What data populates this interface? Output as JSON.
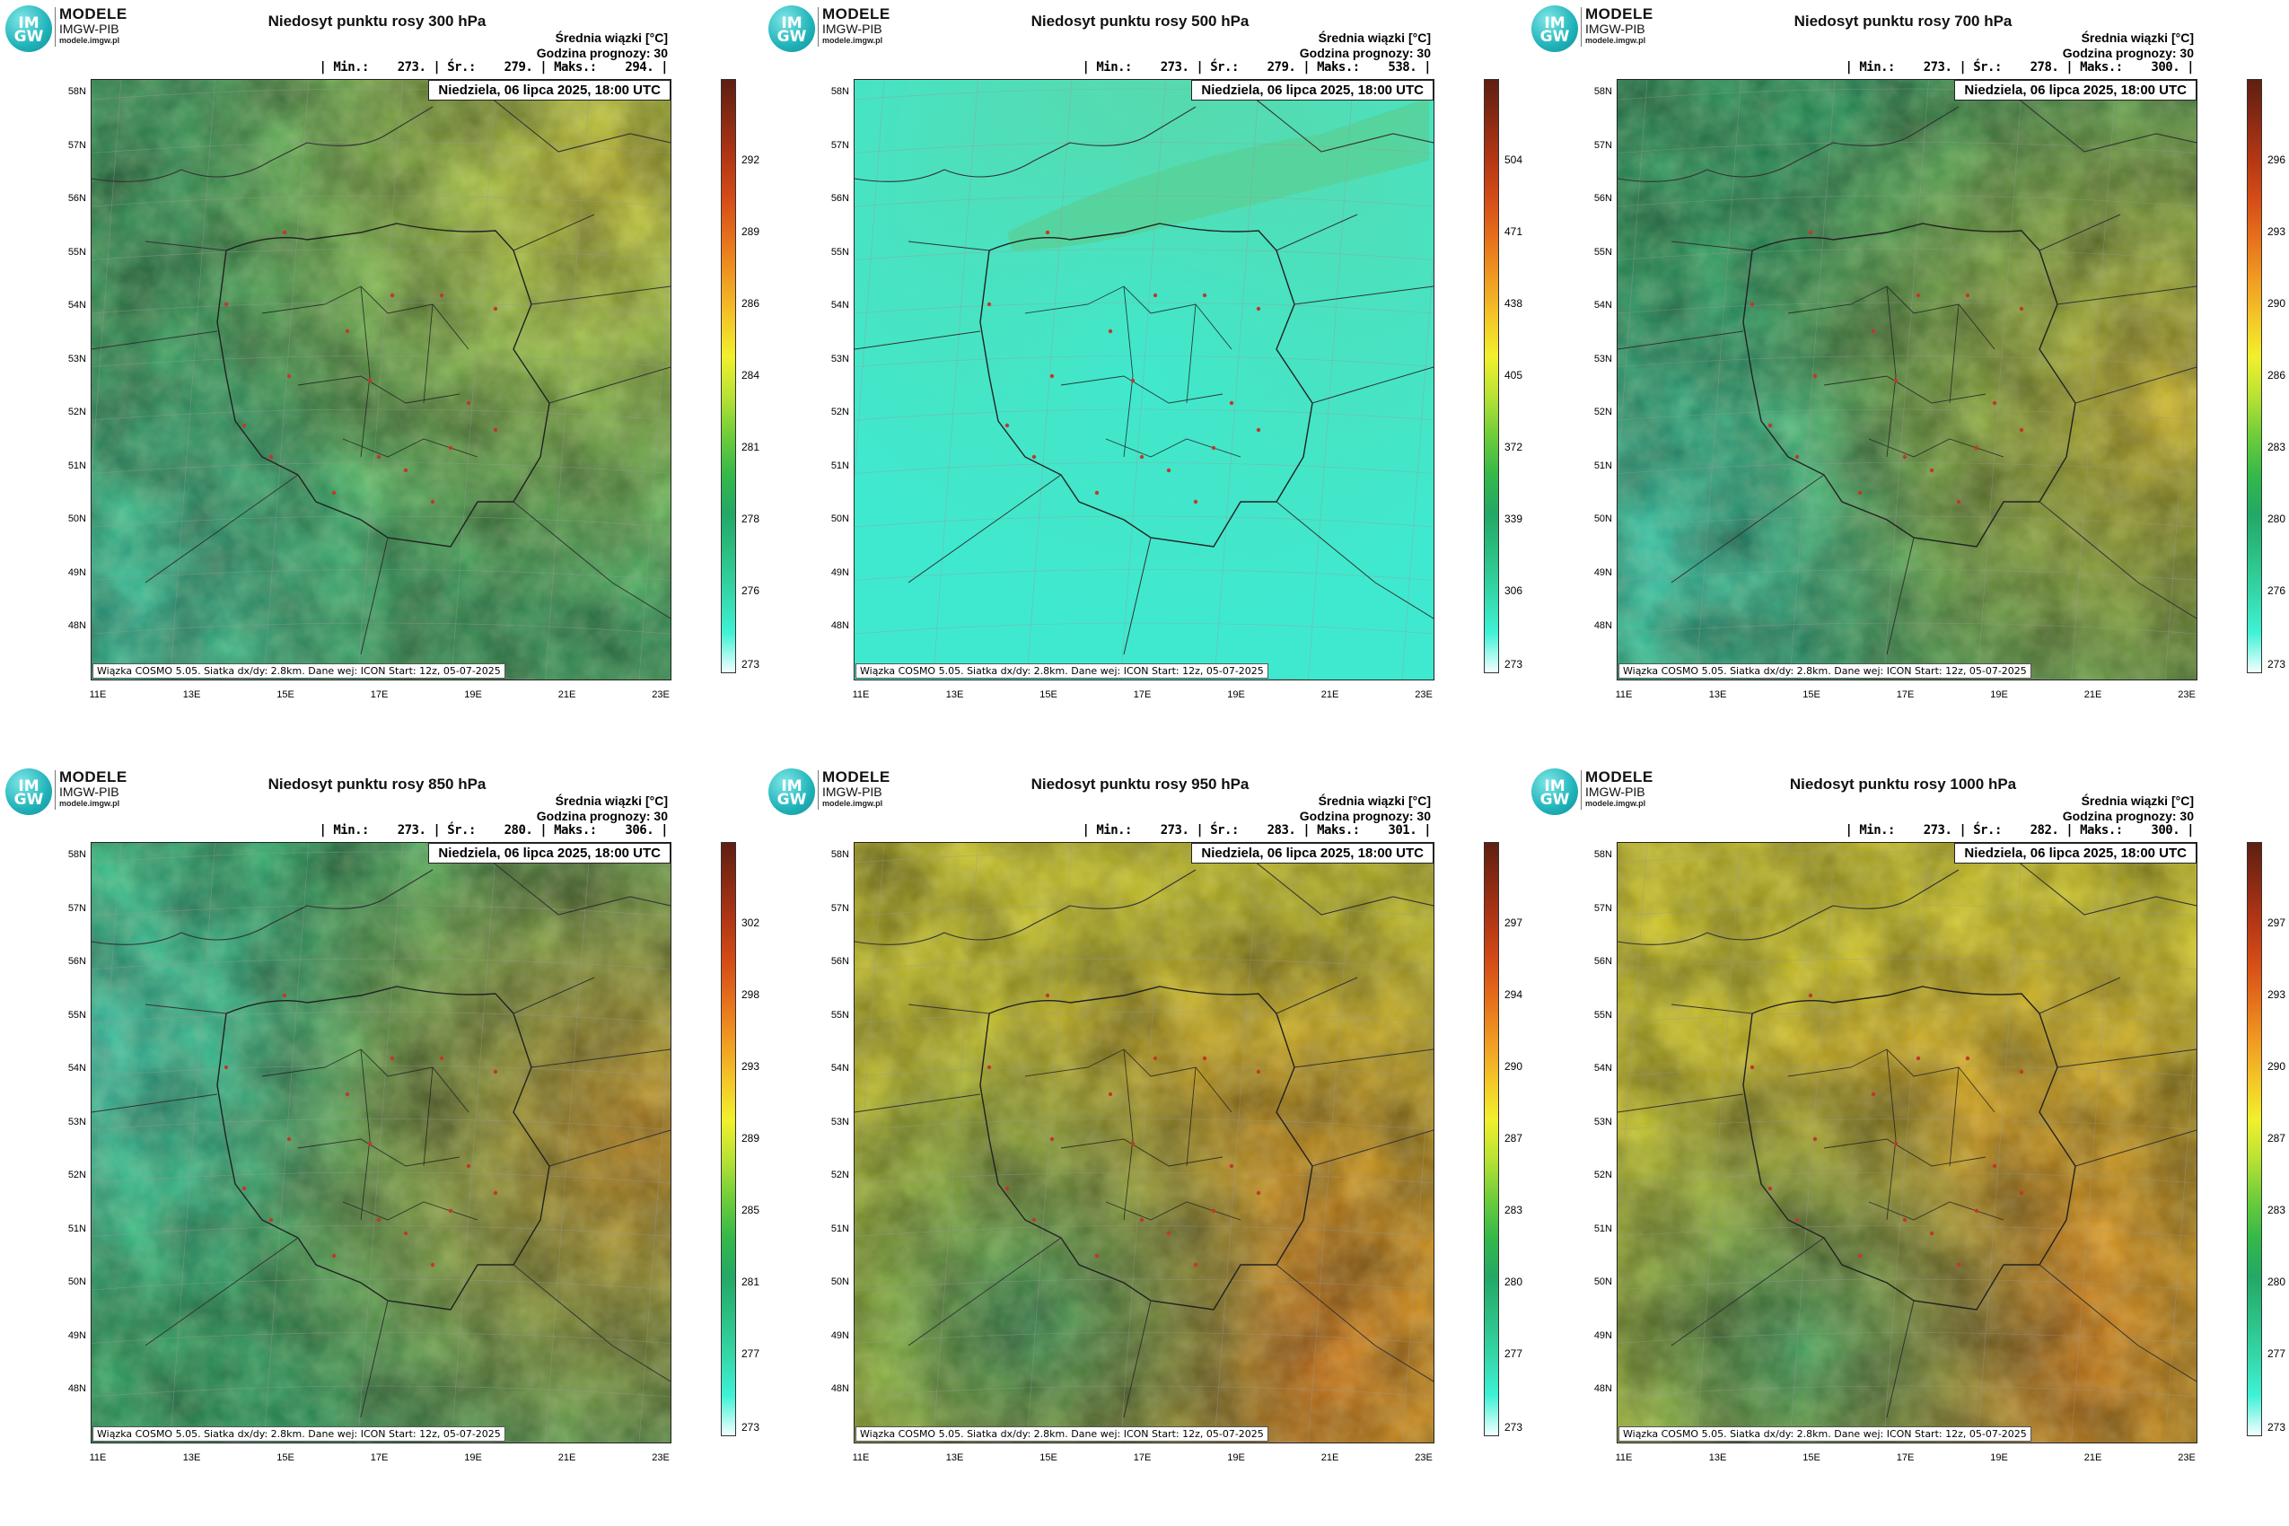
{
  "brand": {
    "name": "MODELE",
    "org": "IMGW-PIB",
    "url": "modele.imgw.pl",
    "logo_text": "IM GW"
  },
  "common": {
    "info_title": "Średnia wiązki [°C]",
    "forecast_hour": "Godzina prognozy: 30",
    "date": "Niedziela, 06 lipca 2025, 18:00 UTC",
    "footnote": "Wiązka COSMO 5.05. Siatka dx/dy: 2.8km. Dane wej: ICON Start: 12z, 05-07-2025",
    "lat_labels": [
      "58N",
      "57N",
      "56N",
      "55N",
      "54N",
      "53N",
      "52N",
      "51N",
      "50N",
      "49N",
      "48N"
    ],
    "lon_labels": [
      "11E",
      "13E",
      "15E",
      "17E",
      "19E",
      "21E",
      "23E"
    ]
  },
  "panels": [
    {
      "title": "Niedosyt punktu rosy 300 hPa",
      "stats": "| Min.:    273. | Śr.:    279. | Maks.:    294. |",
      "cbar_ticks": [
        "292",
        "289",
        "286",
        "284",
        "281",
        "278",
        "276",
        "273"
      ],
      "colors": {
        "base": "#3fae6a",
        "hot": "#f1e43c",
        "cool": "#39d8b8"
      }
    },
    {
      "title": "Niedosyt punktu rosy 500 hPa",
      "stats": "| Min.:    273. | Śr.:    279. | Maks.:    538. |",
      "cbar_ticks": [
        "504",
        "471",
        "438",
        "405",
        "372",
        "339",
        "306",
        "273"
      ],
      "colors": {
        "base": "#3fe9cf",
        "hot": "#5cd6a6",
        "cool": "#3fe9cf"
      }
    },
    {
      "title": "Niedosyt punktu rosy 700 hPa",
      "stats": "| Min.:    273. | Śr.:    278. | Maks.:    300. |",
      "cbar_ticks": [
        "296",
        "293",
        "290",
        "286",
        "283",
        "280",
        "276",
        "273"
      ],
      "colors": {
        "base": "#2fa76a",
        "hot": "#e6c22a",
        "cool": "#3ee2c8"
      }
    },
    {
      "title": "Niedosyt punktu rosy 850 hPa",
      "stats": "| Min.:    273. | Śr.:    280. | Maks.:    306. |",
      "cbar_ticks": [
        "302",
        "298",
        "293",
        "289",
        "285",
        "281",
        "277",
        "273"
      ],
      "colors": {
        "base": "#33b571",
        "hot": "#e59a22",
        "cool": "#45e3cb"
      }
    },
    {
      "title": "Niedosyt punktu rosy 950 hPa",
      "stats": "| Min.:    273. | Śr.:    283. | Maks.:    301. |",
      "cbar_ticks": [
        "297",
        "294",
        "290",
        "287",
        "283",
        "280",
        "277",
        "273"
      ],
      "colors": {
        "base": "#d8d22e",
        "hot": "#e0761a",
        "cool": "#2fa56a"
      }
    },
    {
      "title": "Niedosyt punktu rosy 1000 hPa",
      "stats": "| Min.:    273. | Śr.:    282. | Maks.:    300. |",
      "cbar_ticks": [
        "297",
        "293",
        "290",
        "287",
        "283",
        "280",
        "277",
        "273"
      ],
      "colors": {
        "base": "#e1d72c",
        "hot": "#e27a1c",
        "cool": "#2fa56a"
      }
    }
  ],
  "colorbar": [
    "#f2ffff",
    "#3ff2d6",
    "#35d7a9",
    "#2cbf84",
    "#23a866",
    "#35b84a",
    "#6fcd3a",
    "#b9e234",
    "#f2f02c",
    "#f4c528",
    "#f09a22",
    "#e6701c",
    "#d44c17",
    "#b33714",
    "#8a2a13",
    "#5e1f12"
  ]
}
